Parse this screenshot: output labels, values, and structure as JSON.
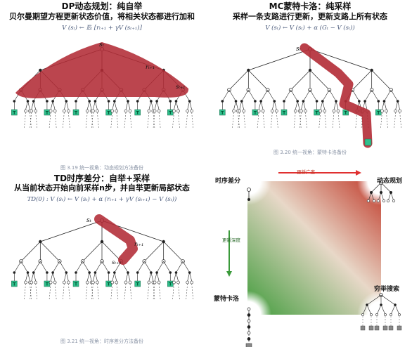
{
  "colors": {
    "backup": "#b22b35",
    "terminal": "#2fbf8c",
    "gradient_green": "#3f9b3a",
    "gradient_red": "#c03a2a",
    "arrow_red": "#e03030",
    "arrow_green": "#3a9a3a"
  },
  "dp": {
    "title1": "DP动态规划：纯自举",
    "title2": "贝尔曼期望方程更新状态价值，将相关状态都进行加和",
    "formula": "V (sₜ) ← 𝔼ₜ [rₜ₊₁ + γV (sₜ₊₁)]",
    "node_st": "sₜ",
    "node_r": "rₜ₊₁",
    "node_st1": "sₜ₊₁",
    "terminal": "T",
    "caption": "图 3.19 统一视角：动态规划方法备份"
  },
  "mc": {
    "title1": "MC蒙特卡洛：纯采样",
    "title2": "采样一条支路进行更新，更新支路上所有状态",
    "formula": "V (sₜ) ← V (sₜ) + α (Gₜ − V (sₜ))",
    "node_st": "sₜ",
    "terminal": "T",
    "caption": "图 3.20 统一视角：蒙特卡洛备份"
  },
  "td": {
    "title1": "TD时序差分：自举+采样",
    "title2": "从当前状态开始向前采样n步，并自举更新局部状态",
    "formula": "TD(0) : V (sₜ) ← V (sₜ) + α (rₜ₊₁ + γV (sₜ₊₁) − V (sₜ))",
    "node_st": "sₜ",
    "node_r": "rₜ₊₁",
    "node_st1": "sₜ₊₁",
    "terminal": "T",
    "caption": "图 3.21 统一视角：时序差分方法备份"
  },
  "unified": {
    "label_td": "时序差分",
    "label_dp": "动态规划",
    "label_mc": "蒙特卡洛",
    "label_exhaustive": "穷举搜索",
    "arrow_width": "更新广度",
    "arrow_depth": "更新深度"
  }
}
